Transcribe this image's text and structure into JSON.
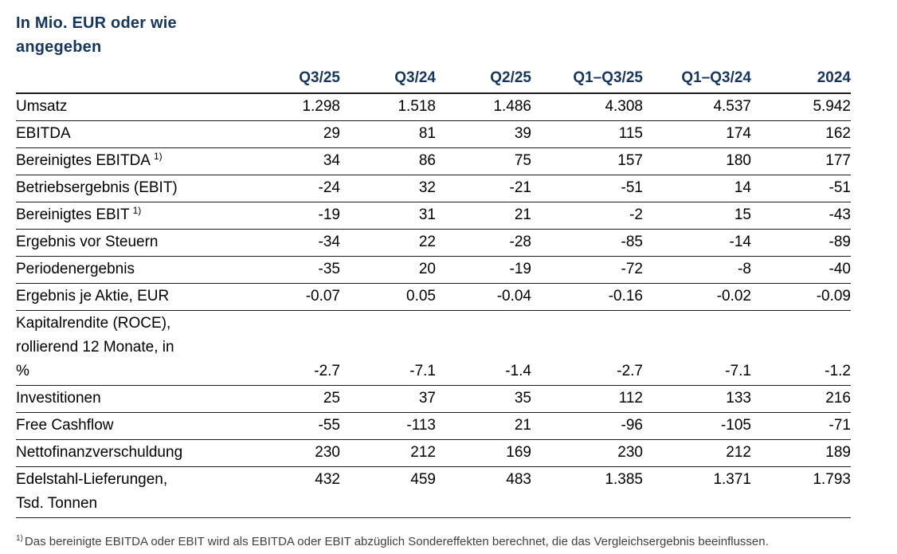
{
  "title": "In Mio. EUR oder wie\nangegeben",
  "colors": {
    "heading_navy": "#17365D",
    "body_text": "#000000",
    "rule": "#1a1a1a",
    "footnote_gray": "#404040"
  },
  "table": {
    "columns": [
      "Q3/25",
      "Q3/24",
      "Q2/25",
      "Q1–Q3/25",
      "Q1–Q3/24",
      "2024"
    ],
    "rows": [
      {
        "label": "Umsatz",
        "values": [
          "1.298",
          "1.518",
          "1.486",
          "4.308",
          "4.537",
          "5.942"
        ]
      },
      {
        "label": "EBITDA",
        "values": [
          "29",
          "81",
          "39",
          "115",
          "174",
          "162"
        ]
      },
      {
        "label": "Bereinigtes EBITDA",
        "sup": "1)",
        "values": [
          "34",
          "86",
          "75",
          "157",
          "180",
          "177"
        ]
      },
      {
        "label": "Betriebsergebnis (EBIT)",
        "values": [
          "-24",
          "32",
          "-21",
          "-51",
          "14",
          "-51"
        ]
      },
      {
        "label": "Bereinigtes EBIT",
        "sup": "1)",
        "values": [
          "-19",
          "31",
          "21",
          "-2",
          "15",
          "-43"
        ]
      },
      {
        "label": "Ergebnis vor Steuern",
        "values": [
          "-34",
          "22",
          "-28",
          "-85",
          "-14",
          "-89"
        ]
      },
      {
        "label": "Periodenergebnis",
        "values": [
          "-35",
          "20",
          "-19",
          "-72",
          "-8",
          "-40"
        ]
      },
      {
        "label": "Ergebnis je Aktie, EUR",
        "values": [
          "-0.07",
          "0.05",
          "-0.04",
          "-0.16",
          "-0.02",
          "-0.09"
        ]
      },
      {
        "label": "Kapitalrendite (ROCE),\nrollierend 12 Monate, in\n%",
        "valign": "bottom",
        "values": [
          "-2.7",
          "-7.1",
          "-1.4",
          "-2.7",
          "-7.1",
          "-1.2"
        ]
      },
      {
        "label": "Investitionen",
        "values": [
          "25",
          "37",
          "35",
          "112",
          "133",
          "216"
        ]
      },
      {
        "label": "Free Cashflow",
        "values": [
          "-55",
          "-113",
          "21",
          "-96",
          "-105",
          "-71"
        ]
      },
      {
        "label": "Nettofinanzverschuldung",
        "values": [
          "230",
          "212",
          "169",
          "230",
          "212",
          "189"
        ]
      },
      {
        "label": "Edelstahl-Lieferungen,\nTsd. Tonnen",
        "valign": "top",
        "values": [
          "432",
          "459",
          "483",
          "1.385",
          "1.371",
          "1.793"
        ]
      }
    ]
  },
  "footnote": {
    "sup": "1)",
    "text": "Das bereinigte EBITDA oder EBIT wird als EBITDA oder EBIT abzüglich Sondereffekten berechnet, die das Vergleichsergebnis beeinflussen."
  }
}
